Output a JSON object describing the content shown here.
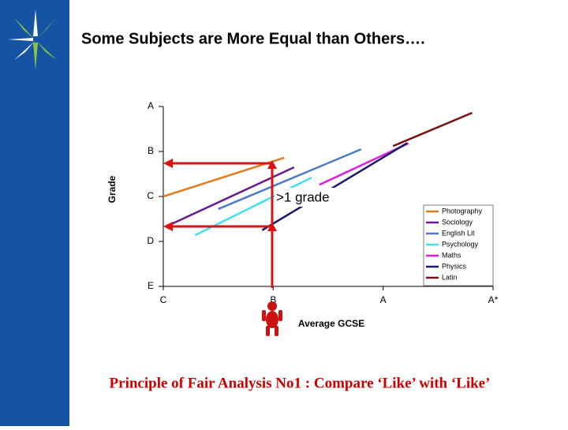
{
  "slide": {
    "title": "Some Subjects are More Equal than Others….",
    "footer": "Principle of Fair Analysis No1 : Compare ‘Like’ with ‘Like’"
  },
  "chart_data": {
    "type": "line",
    "xlabel": "Average GCSE",
    "ylabel": "Grade",
    "annotation": ">1 grade",
    "xlim": [
      0,
      3
    ],
    "ylim": [
      0,
      4
    ],
    "xticks": [
      {
        "value": 0,
        "label": "C"
      },
      {
        "value": 1,
        "label": "B"
      },
      {
        "value": 2,
        "label": "A"
      },
      {
        "value": 3,
        "label": "A*"
      }
    ],
    "yticks": [
      {
        "value": 0,
        "label": "E"
      },
      {
        "value": 1,
        "label": "D"
      },
      {
        "value": 2,
        "label": "C"
      },
      {
        "value": 3,
        "label": "B"
      },
      {
        "value": 4,
        "label": "A"
      }
    ],
    "series": [
      {
        "name": "Photography",
        "color": "#e07b20",
        "x": [
          0,
          1.1
        ],
        "values": [
          2,
          2.86
        ]
      },
      {
        "name": "Sociology",
        "color": "#6a1a8a",
        "x": [
          0.06,
          1.19
        ],
        "values": [
          1.37,
          2.65
        ]
      },
      {
        "name": "English Lit",
        "color": "#4a7ac8",
        "x": [
          0.5,
          1.8
        ],
        "values": [
          1.72,
          3.05
        ]
      },
      {
        "name": "Psychology",
        "color": "#40e0f0",
        "x": [
          0.29,
          1.35
        ],
        "values": [
          1.14,
          2.42
        ]
      },
      {
        "name": "Maths",
        "color": "#e020e0",
        "x": [
          1.42,
          2.23
        ],
        "values": [
          2.26,
          3.18
        ]
      },
      {
        "name": "Physics",
        "color": "#1a1a6a",
        "x": [
          0.9,
          2.22
        ],
        "values": [
          1.25,
          3.19
        ]
      },
      {
        "name": "Latin",
        "color": "#7a1010",
        "x": [
          2.09,
          2.81
        ],
        "values": [
          3.12,
          3.86
        ]
      }
    ]
  }
}
